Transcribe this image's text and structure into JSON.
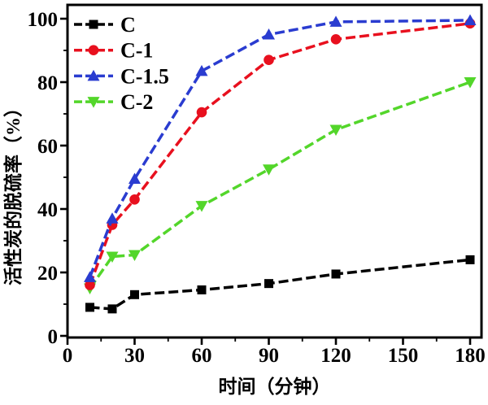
{
  "chart_data": {
    "type": "line",
    "title": "",
    "xlabel": "时间（分钟）",
    "ylabel": "活性炭的脱硫率（%）",
    "xlim": [
      0,
      185
    ],
    "ylim": [
      0,
      104
    ],
    "grid": false,
    "legend_position": "top-left",
    "line_style": "dashed",
    "x_major_ticks": [
      0,
      30,
      60,
      90,
      120,
      150,
      180
    ],
    "x_minor_ticks": [
      15,
      45,
      75,
      105,
      135,
      165
    ],
    "y_major_ticks": [
      0,
      20,
      40,
      60,
      80,
      100
    ],
    "y_minor_ticks": [
      10,
      30,
      50,
      70,
      90
    ],
    "x": [
      10,
      20,
      30,
      60,
      90,
      120,
      180
    ],
    "series": [
      {
        "name": "C",
        "color": "#000000",
        "marker": "square",
        "values": [
          9,
          8.5,
          13,
          14.5,
          16.5,
          19.5,
          24
        ]
      },
      {
        "name": "C-1",
        "color": "#e8101e",
        "marker": "circle",
        "values": [
          16,
          35,
          43,
          70.5,
          87,
          93.5,
          98.5
        ]
      },
      {
        "name": "C-1.5",
        "color": "#2a3cd0",
        "marker": "triangle-up",
        "values": [
          18.5,
          37,
          49.5,
          83.5,
          95,
          99,
          99.5
        ]
      },
      {
        "name": "C-2",
        "color": "#53d62a",
        "marker": "triangle-down",
        "values": [
          15,
          25,
          25.5,
          41,
          52.5,
          65,
          80
        ]
      }
    ]
  }
}
